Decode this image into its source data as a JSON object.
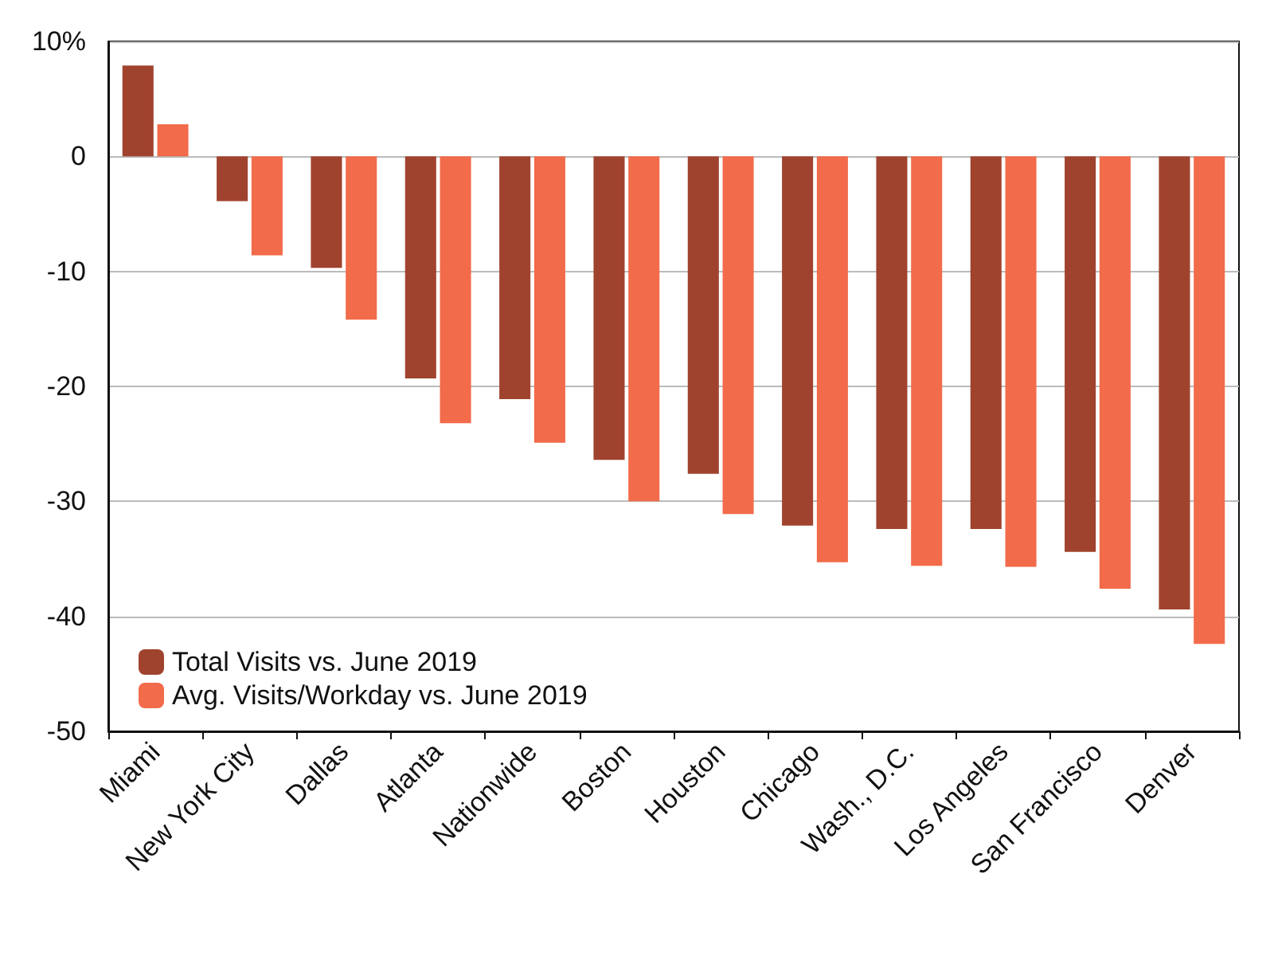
{
  "chart_data": {
    "type": "bar",
    "categories": [
      "Miami",
      "New York City",
      "Dallas",
      "Atlanta",
      "Nationwide",
      "Boston",
      "Houston",
      "Chicago",
      "Wash., D.C.",
      "Los Angeles",
      "San Francisco",
      "Denver"
    ],
    "series": [
      {
        "name": "Total Visits vs. June 2019",
        "color": "#a0432e",
        "values": [
          7.9,
          -3.9,
          -9.7,
          -19.3,
          -21.1,
          -26.4,
          -27.6,
          -32.1,
          -32.4,
          -32.4,
          -34.4,
          -39.4
        ]
      },
      {
        "name": "Avg. Visits/Workday vs. June 2019",
        "color": "#f26b4a",
        "values": [
          2.8,
          -8.6,
          -14.2,
          -23.2,
          -24.9,
          -30.0,
          -31.1,
          -35.3,
          -35.6,
          -35.7,
          -37.6,
          -42.4
        ]
      }
    ],
    "ylim": [
      -50,
      10
    ],
    "yticks": [
      -50,
      -40,
      -30,
      -20,
      -10,
      0,
      {
        "value": 10,
        "label": "10%"
      }
    ],
    "grid": "y",
    "legend": "bottom left"
  }
}
